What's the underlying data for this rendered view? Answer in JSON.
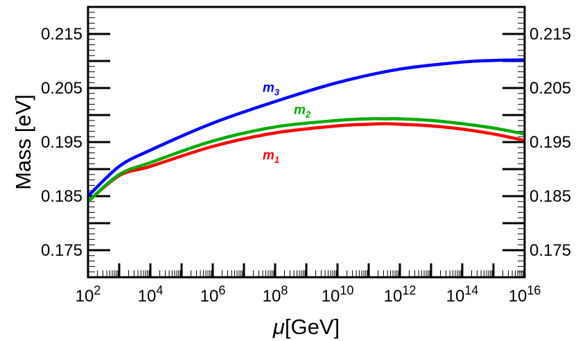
{
  "chart_data": {
    "type": "line",
    "title": "",
    "xlabel_mu": "μ",
    "xlabel_unit": "[GeV]",
    "ylabel": "Mass [eV]",
    "xscale": "log",
    "xlim": [
      2,
      16
    ],
    "ylim": [
      0.17,
      0.22
    ],
    "x_tick_exponents": [
      "2",
      "4",
      "6",
      "8",
      "10",
      "12",
      "14",
      "16"
    ],
    "x_tick_base": "10",
    "y_ticks": [
      "0.175",
      "0.185",
      "0.195",
      "0.205",
      "0.215"
    ],
    "grid": false,
    "series": [
      {
        "name": "m",
        "index": "1",
        "color": "#ff0000",
        "x": [
          2,
          3,
          4,
          6,
          8,
          10,
          11,
          11.5,
          12,
          13,
          14,
          15,
          16
        ],
        "y": [
          0.184,
          0.1888,
          0.1905,
          0.1942,
          0.1967,
          0.198,
          0.1983,
          0.1984,
          0.1983,
          0.198,
          0.1974,
          0.1965,
          0.1953
        ]
      },
      {
        "name": "m",
        "index": "2",
        "color": "#00aa00",
        "x": [
          2,
          3,
          4,
          6,
          8,
          10,
          11,
          11.5,
          12,
          13,
          14,
          15,
          16
        ],
        "y": [
          0.184,
          0.189,
          0.1912,
          0.1952,
          0.1978,
          0.199,
          0.1993,
          0.1993,
          0.1993,
          0.199,
          0.1984,
          0.1976,
          0.1965
        ]
      },
      {
        "name": "m",
        "index": "3",
        "color": "#0000ff",
        "x": [
          2,
          3,
          4,
          6,
          8,
          10,
          12,
          14,
          15,
          16
        ],
        "y": [
          0.185,
          0.1905,
          0.1935,
          0.1985,
          0.2025,
          0.206,
          0.2085,
          0.2098,
          0.2101,
          0.2102
        ]
      }
    ],
    "annotations": [
      {
        "series": 2,
        "x": 7.6,
        "y": 0.2043
      },
      {
        "series": 1,
        "x": 8.6,
        "y": 0.2002
      },
      {
        "series": 0,
        "x": 7.6,
        "y": 0.1918
      }
    ]
  }
}
